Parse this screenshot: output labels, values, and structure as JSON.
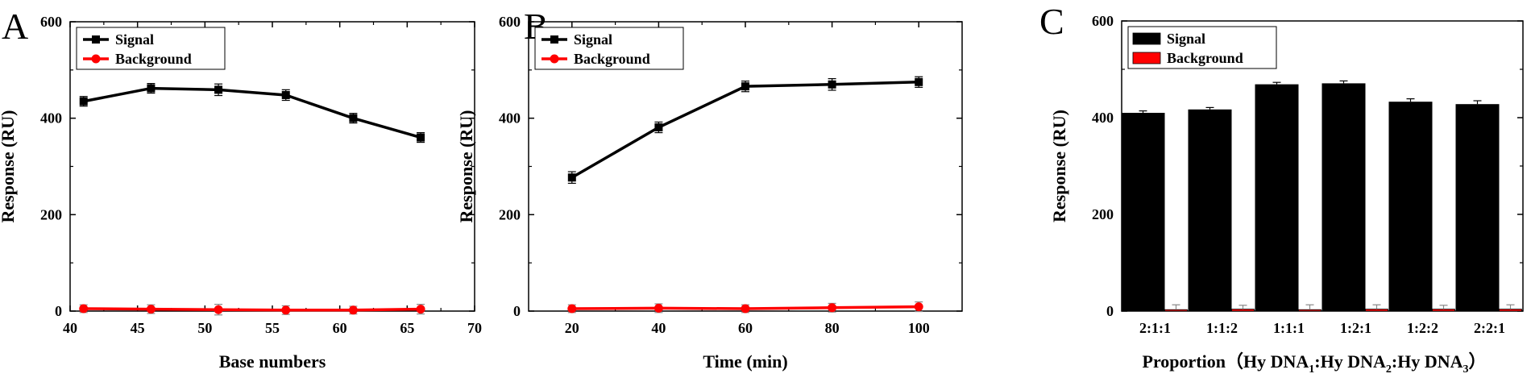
{
  "chart_data": [
    {
      "panel": "A",
      "type": "line",
      "xlabel": "Base numbers",
      "ylabel": "Response (RU)",
      "xlim": [
        40,
        70
      ],
      "ylim": [
        0,
        600
      ],
      "xticks": [
        40,
        45,
        50,
        55,
        60,
        65,
        70
      ],
      "yticks": [
        0,
        200,
        400,
        600
      ],
      "legend_position": "top-left",
      "series": [
        {
          "name": "Signal",
          "color": "#000000",
          "marker": "square",
          "x": [
            41,
            46,
            51,
            56,
            61,
            66
          ],
          "y": [
            435,
            462,
            459,
            448,
            400,
            360
          ],
          "err": [
            10,
            10,
            12,
            11,
            10,
            10
          ]
        },
        {
          "name": "Background",
          "color": "#ff0000",
          "marker": "circle",
          "x": [
            41,
            46,
            51,
            56,
            61,
            66
          ],
          "y": [
            5,
            4,
            3,
            2,
            2,
            4
          ],
          "err": [
            8,
            9,
            11,
            9,
            8,
            10
          ]
        }
      ]
    },
    {
      "panel": "B",
      "type": "line",
      "xlabel": "Time (min)",
      "ylabel": "Response (RU)",
      "xlim": [
        10,
        110
      ],
      "ylim": [
        0,
        600
      ],
      "xticks": [
        20,
        40,
        60,
        80,
        100
      ],
      "yticks": [
        0,
        200,
        400,
        600
      ],
      "legend_position": "top-left",
      "series": [
        {
          "name": "Signal",
          "color": "#000000",
          "marker": "square",
          "x": [
            20,
            40,
            60,
            80,
            100
          ],
          "y": [
            277,
            381,
            466,
            470,
            475
          ],
          "err": [
            12,
            11,
            11,
            12,
            11
          ]
        },
        {
          "name": "Background",
          "color": "#ff0000",
          "marker": "circle",
          "x": [
            20,
            40,
            60,
            80,
            100
          ],
          "y": [
            5,
            6,
            5,
            7,
            9
          ],
          "err": [
            8,
            9,
            8,
            9,
            10
          ]
        }
      ]
    },
    {
      "panel": "C",
      "type": "bar",
      "xlabel": "Proportion（Hy DNA",
      "xlabel_parts": [
        {
          "text": "Proportion（Hy DNA",
          "sub": false
        },
        {
          "text": "1",
          "sub": true
        },
        {
          "text": ":Hy DNA",
          "sub": false
        },
        {
          "text": "2",
          "sub": true
        },
        {
          "text": ":Hy DNA",
          "sub": false
        },
        {
          "text": "3",
          "sub": true
        },
        {
          "text": "）",
          "sub": false
        }
      ],
      "ylabel": "Response (RU)",
      "ylim": [
        0,
        600
      ],
      "yticks": [
        0,
        200,
        400,
        600
      ],
      "categories": [
        "2:1:1",
        "1:1:2",
        "1:1:1",
        "1:2:1",
        "1:2:2",
        "2:2:1"
      ],
      "legend_position": "top-left",
      "series": [
        {
          "name": "Signal",
          "color": "#000000",
          "values": [
            410,
            417,
            469,
            471,
            433,
            428
          ],
          "err": [
            4,
            4,
            4,
            5,
            6,
            7
          ]
        },
        {
          "name": "Background",
          "color": "#ff0000",
          "values": [
            3,
            4,
            3,
            4,
            4,
            4
          ],
          "err": [
            10,
            8,
            10,
            9,
            8,
            9
          ]
        }
      ]
    }
  ]
}
